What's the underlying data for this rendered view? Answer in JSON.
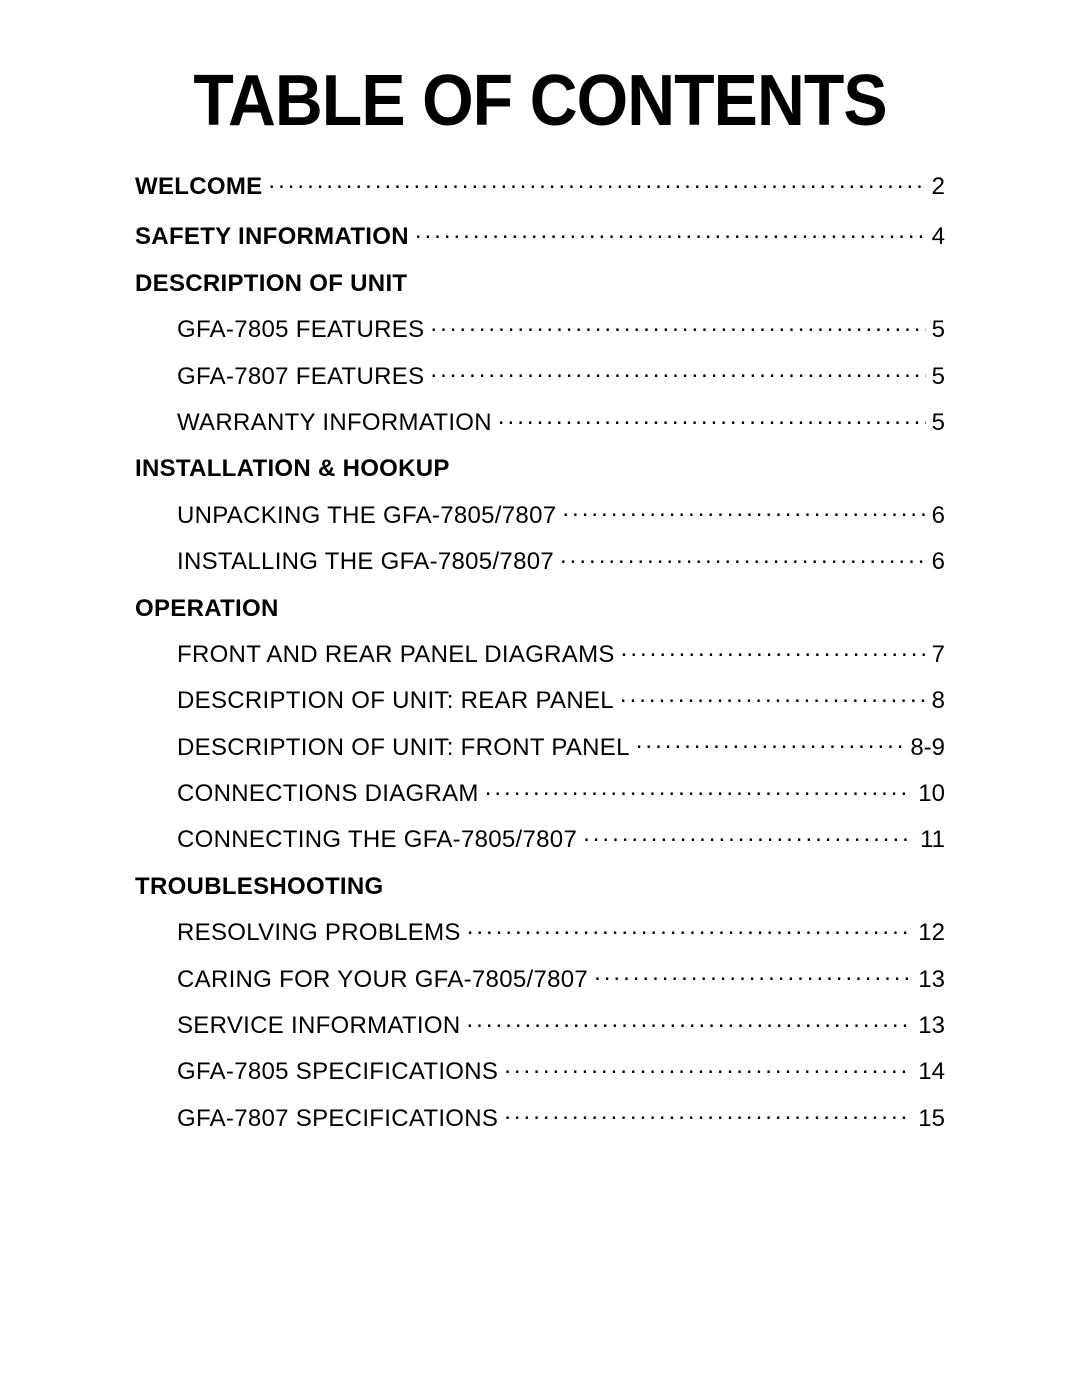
{
  "title": "TABLE OF CONTENTS",
  "title_fontsize_pt": 54,
  "title_fontweight": 900,
  "body_fontsize_pt": 18,
  "colors": {
    "text": "#000000",
    "background": "#ffffff"
  },
  "toc": {
    "sections": [
      {
        "heading": {
          "label": "WELCOME",
          "page": "2",
          "bold": true,
          "has_page": true
        },
        "items": []
      },
      {
        "heading": {
          "label": "SAFETY INFORMATION",
          "page": "4",
          "bold": true,
          "has_page": true
        },
        "items": []
      },
      {
        "heading": {
          "label": "DESCRIPTION OF UNIT",
          "page": "",
          "bold": true,
          "has_page": false
        },
        "items": [
          {
            "label": "GFA-7805 FEATURES",
            "page": "5"
          },
          {
            "label": "GFA-7807 FEATURES",
            "page": "5"
          },
          {
            "label": "WARRANTY INFORMATION",
            "page": "5"
          }
        ]
      },
      {
        "heading": {
          "label": "INSTALLATION & HOOKUP",
          "page": "",
          "bold": true,
          "has_page": false
        },
        "items": [
          {
            "label": "UNPACKING THE GFA-7805/7807",
            "page": "6"
          },
          {
            "label": "INSTALLING THE GFA-7805/7807",
            "page": "6"
          }
        ]
      },
      {
        "heading": {
          "label": "OPERATION",
          "page": "",
          "bold": true,
          "has_page": false
        },
        "items": [
          {
            "label": "FRONT AND REAR PANEL DIAGRAMS",
            "page": "7"
          },
          {
            "label": "DESCRIPTION OF UNIT: REAR PANEL",
            "page": "8"
          },
          {
            "label": "DESCRIPTION OF UNIT: FRONT PANEL",
            "page": "8-9"
          },
          {
            "label": "CONNECTIONS DIAGRAM",
            "page": "10"
          },
          {
            "label": "CONNECTING THE GFA-7805/7807",
            "page": "11"
          }
        ]
      },
      {
        "heading": {
          "label": "TROUBLESHOOTING",
          "page": "",
          "bold": true,
          "has_page": false
        },
        "items": [
          {
            "label": "RESOLVING PROBLEMS",
            "page": "12"
          },
          {
            "label": "CARING FOR YOUR GFA-7805/7807",
            "page": "13"
          },
          {
            "label": "SERVICE INFORMATION",
            "page": "13"
          },
          {
            "label": "GFA-7805 SPECIFICATIONS",
            "page": "14"
          },
          {
            "label": "GFA-7807 SPECIFICATIONS",
            "page": "15"
          }
        ]
      }
    ]
  }
}
